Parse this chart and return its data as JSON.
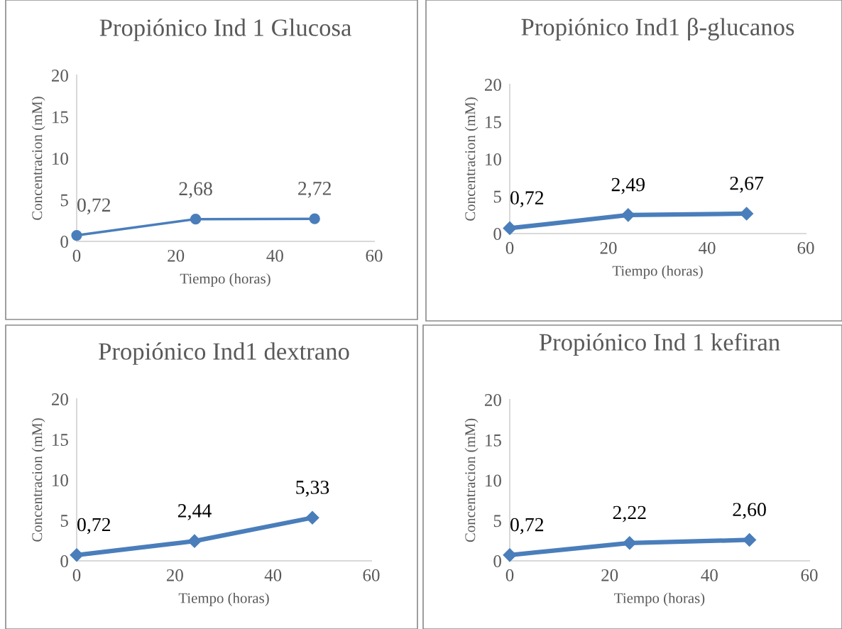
{
  "chart_data": [
    {
      "type": "line",
      "title": "Propiónico Ind 1 Glucosa",
      "xlabel": "Tiempo (horas)",
      "ylabel": "Concentracion (mM)",
      "x": [
        0,
        24,
        48
      ],
      "values": [
        0.72,
        2.68,
        2.72
      ],
      "value_labels": [
        "0,72",
        "2,68",
        "2,72"
      ],
      "color": "#4a7ebb",
      "marker": "circle",
      "xlim": [
        0,
        60
      ],
      "xticks": [
        0,
        20,
        40,
        60
      ],
      "ylim": [
        0,
        20
      ],
      "yticks": [
        0,
        5,
        10,
        15,
        20
      ],
      "grid": false,
      "legend": false
    },
    {
      "type": "line",
      "title": "Propiónico Ind1 β-glucanos",
      "xlabel": "Tiempo (horas)",
      "ylabel": "Concentracion (mM)",
      "x": [
        0,
        24,
        48
      ],
      "values": [
        0.72,
        2.49,
        2.67
      ],
      "value_labels": [
        "0,72",
        "2,49",
        "2,67"
      ],
      "color": "#4a7ebb",
      "marker": "diamond",
      "xlim": [
        0,
        60
      ],
      "xticks": [
        0,
        20,
        40,
        60
      ],
      "ylim": [
        0,
        20
      ],
      "yticks": [
        0,
        5,
        10,
        15,
        20
      ],
      "grid": false,
      "legend": false
    },
    {
      "type": "line",
      "title": "Propiónico Ind1 dextrano",
      "xlabel": "Tiempo (horas)",
      "ylabel": "Concentracion (mM)",
      "x": [
        0,
        24,
        48
      ],
      "values": [
        0.72,
        2.44,
        5.33
      ],
      "value_labels": [
        "0,72",
        "2,44",
        "5,33"
      ],
      "color": "#4a7ebb",
      "marker": "diamond",
      "xlim": [
        0,
        60
      ],
      "xticks": [
        0,
        20,
        40,
        60
      ],
      "ylim": [
        0,
        20
      ],
      "yticks": [
        0,
        5,
        10,
        15,
        20
      ],
      "grid": false,
      "legend": false
    },
    {
      "type": "line",
      "title": "Propiónico Ind 1 kefiran",
      "xlabel": "Tiempo (horas)",
      "ylabel": "Concentracion (mM)",
      "x": [
        0,
        24,
        48
      ],
      "values": [
        0.72,
        2.22,
        2.6
      ],
      "value_labels": [
        "0,72",
        "2,22",
        "2,60"
      ],
      "color": "#4a7ebb",
      "marker": "diamond",
      "xlim": [
        0,
        60
      ],
      "xticks": [
        0,
        20,
        40,
        60
      ],
      "ylim": [
        0,
        20
      ],
      "yticks": [
        0,
        5,
        10,
        15,
        20
      ],
      "grid": false,
      "legend": false
    }
  ]
}
